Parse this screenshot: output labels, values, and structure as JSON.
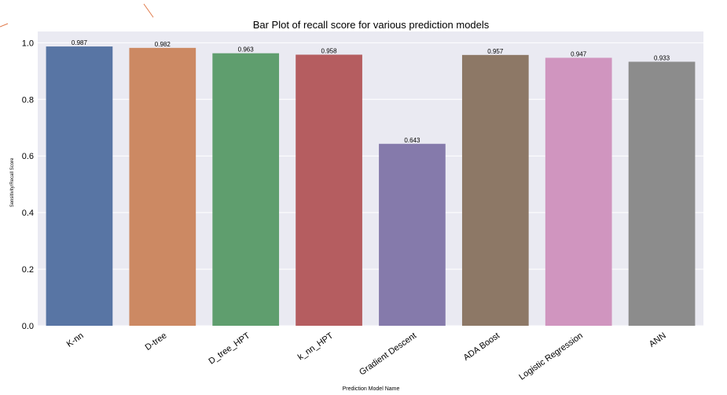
{
  "chart_data": {
    "type": "bar",
    "title": "Bar Plot of recall score for various prediction models",
    "xlabel": "Prediction Model Name",
    "ylabel": "Sensitivity/Recall Score",
    "categories": [
      "K-nn",
      "D-tree",
      "D_tree_HPT",
      "k_nn_HPT",
      "Gradient Descent",
      "ADA Boost",
      "Logistic Regression",
      "ANN"
    ],
    "values": [
      0.987,
      0.982,
      0.963,
      0.958,
      0.643,
      0.957,
      0.947,
      0.933
    ],
    "value_labels": [
      "0.987",
      "0.982",
      "0.963",
      "0.958",
      "0.643",
      "0.957",
      "0.947",
      "0.933"
    ],
    "colors": [
      "#5875a4",
      "#cc8963",
      "#5f9e6e",
      "#b55d60",
      "#857aab",
      "#8d7866",
      "#d095bf",
      "#8c8c8c"
    ],
    "ylim": [
      0,
      1.04
    ],
    "yticks": [
      0.0,
      0.2,
      0.4,
      0.6,
      0.8,
      1.0
    ],
    "ytick_labels": [
      "0.0",
      "0.2",
      "0.4",
      "0.6",
      "0.8",
      "1.0"
    ],
    "grid": true,
    "background_color": "#eaeaf2",
    "grid_color": "#ffffff"
  }
}
